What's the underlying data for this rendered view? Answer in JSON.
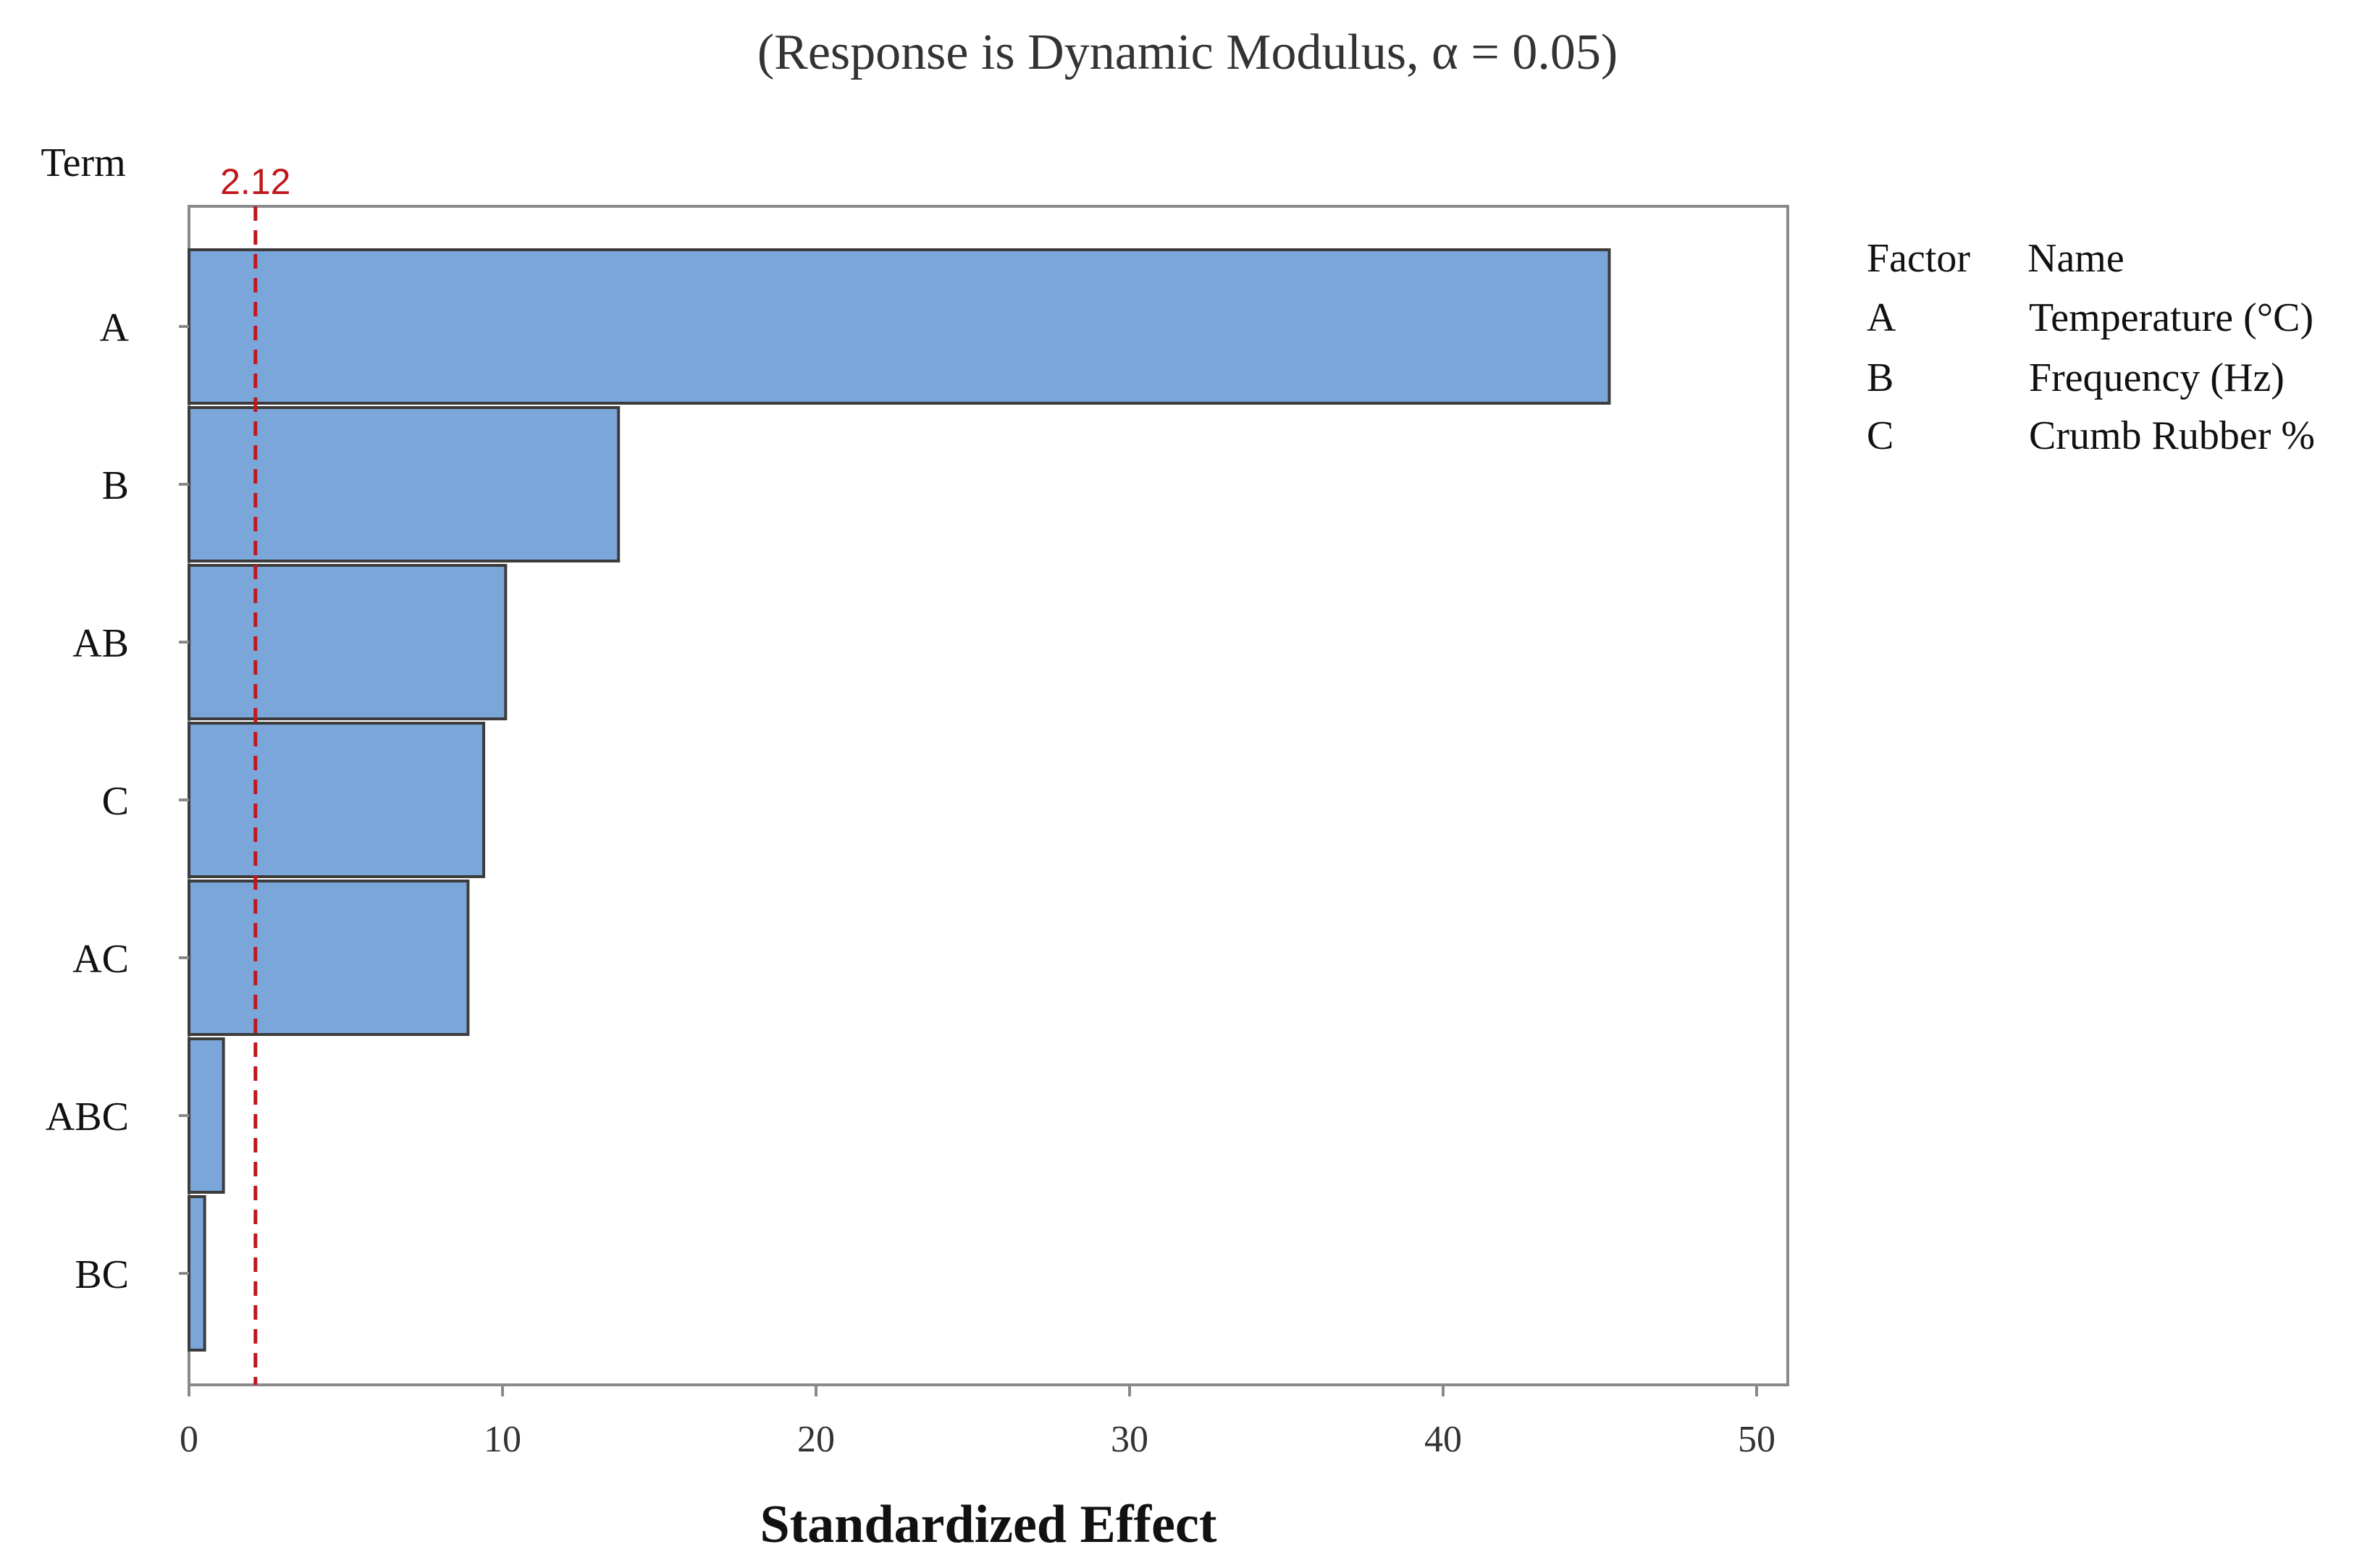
{
  "subtitle": "(Response is Dynamic Modulus, α = 0.05)",
  "y_axis_title": "Term",
  "x_axis_title": "Standardized Effect",
  "reference_line": {
    "value": 2.12,
    "label": "2.12",
    "color": "#c0171c"
  },
  "legend": {
    "header_factor": "Factor",
    "header_name": "Name",
    "rows": [
      {
        "factor": "A",
        "name": "Temperature (°C)"
      },
      {
        "factor": "B",
        "name": "Frequency (Hz)"
      },
      {
        "factor": "C",
        "name": "Crumb Rubber %"
      }
    ]
  },
  "colors": {
    "bar_fill": "#7aa6da",
    "bar_stroke": "#3c3c3c",
    "frame": "#8a8a8a",
    "text": "#111111"
  },
  "chart_data": {
    "type": "bar",
    "orientation": "horizontal",
    "categories": [
      "A",
      "B",
      "AB",
      "C",
      "AC",
      "ABC",
      "BC"
    ],
    "values": [
      45.3,
      13.7,
      10.1,
      9.4,
      8.9,
      1.1,
      0.5
    ],
    "xlabel": "Standardized Effect",
    "ylabel": "Term",
    "xlim": [
      0,
      51
    ],
    "xticks": [
      0,
      10,
      20,
      30,
      40,
      50
    ],
    "grid": false,
    "legend_position": "right"
  }
}
